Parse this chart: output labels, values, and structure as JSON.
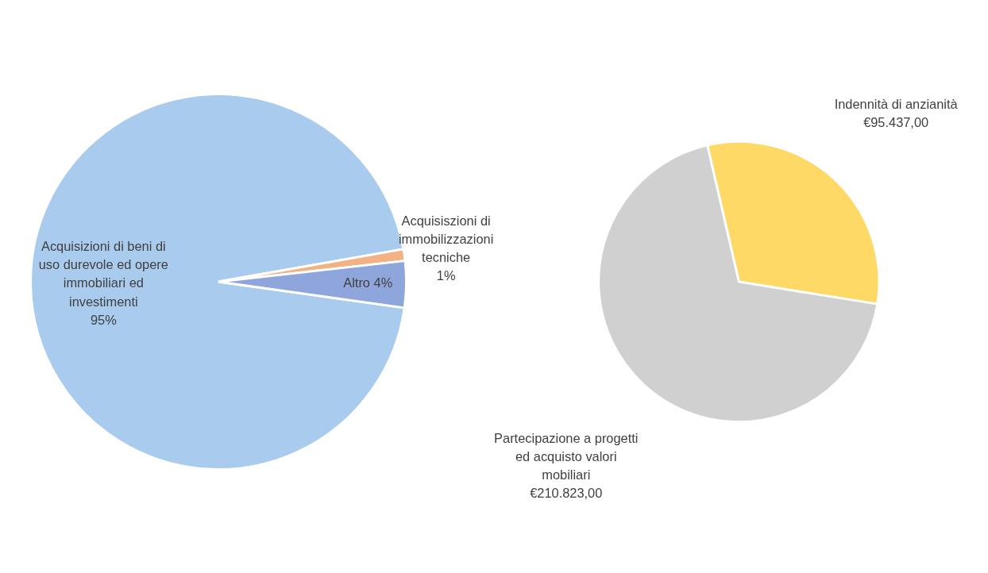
{
  "chart_data": [
    {
      "type": "pie",
      "categories": [
        "Acquisizioni di beni di uso durevole ed opere immobiliari ed investimenti",
        "Acquisiszioni di immobilizzazioni tecniche",
        "Altro"
      ],
      "values": [
        95,
        1,
        4
      ],
      "value_labels": [
        "95%",
        "1%",
        "4%"
      ],
      "colors": [
        "#a9cbee",
        "#f4b183",
        "#8fa6dc"
      ],
      "legend": false
    },
    {
      "type": "pie",
      "categories": [
        "Indennità di anzianità",
        "Partecipazione a progetti ed acquisto valori mobiliari"
      ],
      "values": [
        95437,
        210823
      ],
      "value_labels": [
        "€95.437,00",
        "€210.823,00"
      ],
      "colors": [
        "#ffd966",
        "#d0d0d0"
      ],
      "legend": false
    }
  ]
}
